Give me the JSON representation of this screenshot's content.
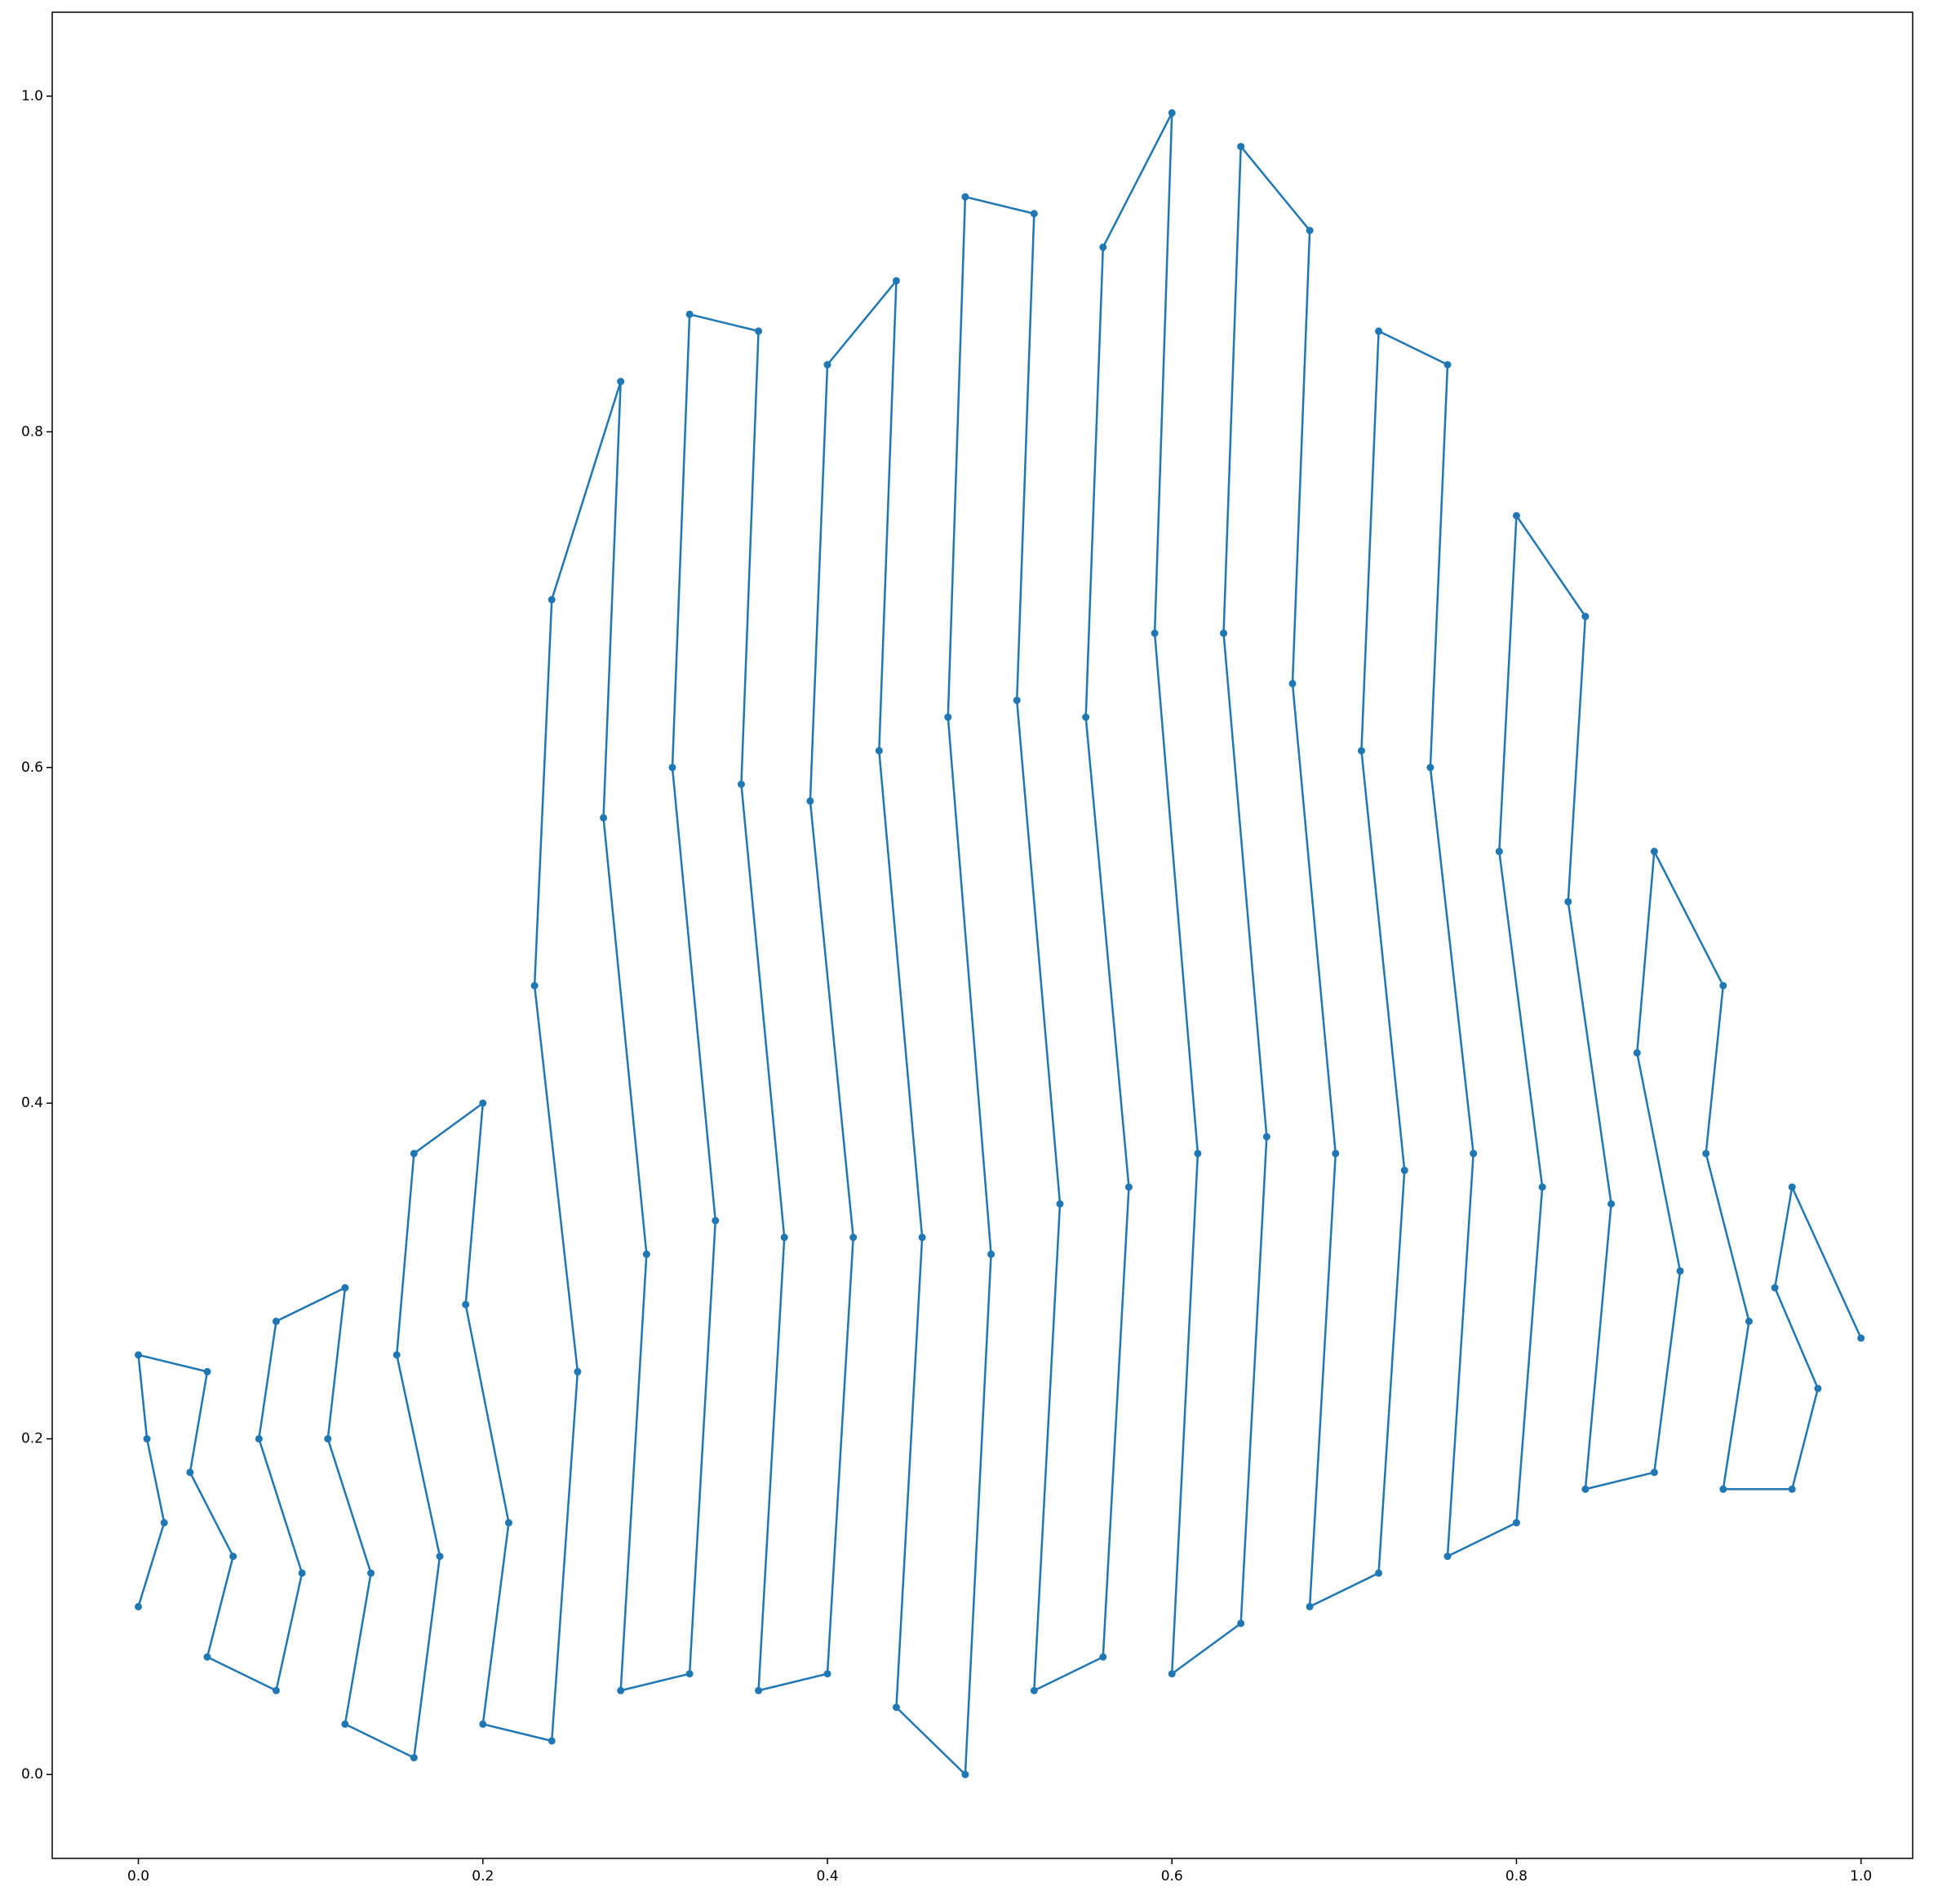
{
  "chart_data": {
    "type": "line",
    "color": "#1f77b4",
    "markers": true,
    "x": [
      0.0,
      0.015,
      0.005,
      0.0,
      0.04,
      0.03,
      0.055,
      0.04,
      0.08,
      0.095,
      0.07,
      0.08,
      0.12,
      0.11,
      0.135,
      0.12,
      0.16,
      0.175,
      0.15,
      0.16,
      0.2,
      0.19,
      0.215,
      0.2,
      0.24,
      0.255,
      0.23,
      0.24,
      0.28,
      0.27,
      0.295,
      0.28,
      0.32,
      0.335,
      0.31,
      0.32,
      0.36,
      0.35,
      0.375,
      0.36,
      0.4,
      0.415,
      0.39,
      0.4,
      0.44,
      0.43,
      0.455,
      0.44,
      0.48,
      0.495,
      0.47,
      0.48,
      0.52,
      0.51,
      0.535,
      0.52,
      0.56,
      0.575,
      0.55,
      0.56,
      0.6,
      0.59,
      0.615,
      0.6,
      0.64,
      0.655,
      0.63,
      0.64,
      0.68,
      0.67,
      0.695,
      0.68,
      0.72,
      0.735,
      0.71,
      0.72,
      0.76,
      0.75,
      0.775,
      0.76,
      0.8,
      0.815,
      0.79,
      0.8,
      0.84,
      0.83,
      0.855,
      0.84,
      0.88,
      0.895,
      0.87,
      0.88,
      0.92,
      0.91,
      0.935,
      0.92,
      0.96,
      0.975,
      0.95,
      0.96,
      1.0
    ],
    "values": [
      0.1,
      0.15,
      0.2,
      0.25,
      0.24,
      0.18,
      0.13,
      0.07,
      0.05,
      0.12,
      0.2,
      0.27,
      0.29,
      0.2,
      0.12,
      0.03,
      0.01,
      0.13,
      0.25,
      0.37,
      0.4,
      0.28,
      0.15,
      0.03,
      0.02,
      0.24,
      0.47,
      0.7,
      0.83,
      0.57,
      0.31,
      0.05,
      0.06,
      0.33,
      0.6,
      0.87,
      0.86,
      0.59,
      0.32,
      0.05,
      0.06,
      0.32,
      0.58,
      0.84,
      0.89,
      0.61,
      0.32,
      0.04,
      0.0,
      0.31,
      0.63,
      0.94,
      0.93,
      0.64,
      0.34,
      0.05,
      0.07,
      0.35,
      0.63,
      0.91,
      0.99,
      0.68,
      0.37,
      0.06,
      0.09,
      0.38,
      0.68,
      0.97,
      0.92,
      0.65,
      0.37,
      0.1,
      0.12,
      0.36,
      0.61,
      0.86,
      0.84,
      0.6,
      0.37,
      0.13,
      0.15,
      0.35,
      0.55,
      0.75,
      0.69,
      0.52,
      0.34,
      0.17,
      0.18,
      0.3,
      0.43,
      0.55,
      0.47,
      0.37,
      0.27,
      0.17,
      0.17,
      0.23,
      0.29,
      0.35,
      0.26
    ],
    "xlim": [
      -0.05,
      1.03
    ],
    "ylim": [
      -0.05,
      1.05
    ],
    "xticks": [
      {
        "value": 0,
        "label": "0.0"
      },
      0.2,
      0.4,
      0.6,
      0.8,
      {
        "value": 1,
        "label": "1.0"
      }
    ],
    "yticks": [
      {
        "value": 0,
        "label": "0.0"
      },
      0.2,
      0.4,
      0.6,
      0.8,
      {
        "value": 1,
        "label": "1.0"
      }
    ]
  }
}
